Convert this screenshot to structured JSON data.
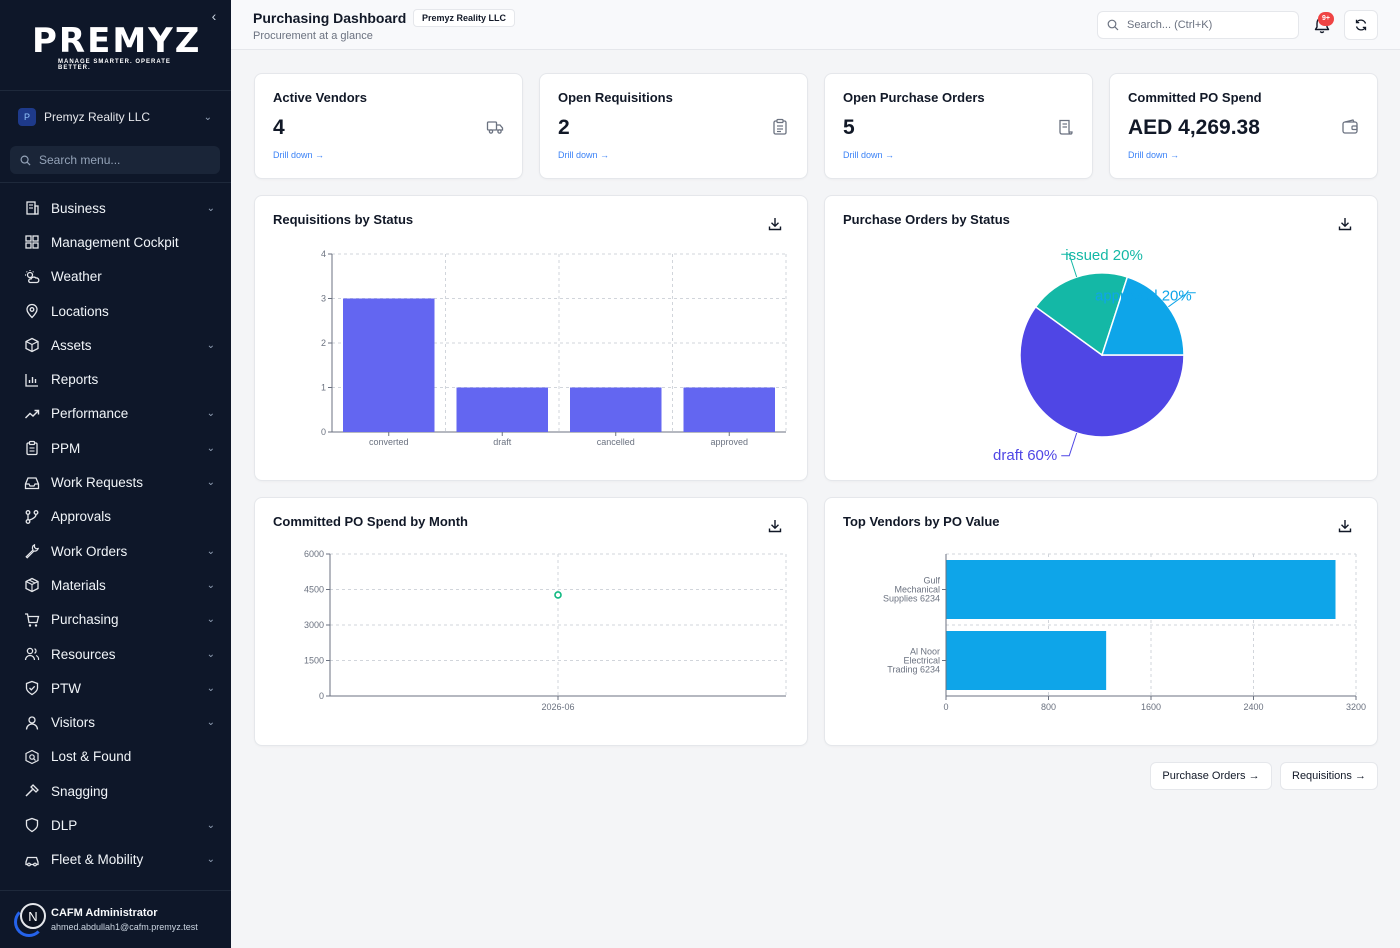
{
  "sidebar": {
    "logo_text": "PREMYZ",
    "logo_tagline": "MANAGE SMARTER. OPERATE BETTER.",
    "org_badge": "P",
    "org_name": "Premyz Reality LLC",
    "search_placeholder": "Search menu...",
    "items": [
      {
        "label": "Business",
        "icon": "building-icon",
        "expandable": true
      },
      {
        "label": "Management Cockpit",
        "icon": "dashboard-grid-icon",
        "expandable": false
      },
      {
        "label": "Weather",
        "icon": "sun-cloud-icon",
        "expandable": false
      },
      {
        "label": "Locations",
        "icon": "map-pin-icon",
        "expandable": false
      },
      {
        "label": "Assets",
        "icon": "box-icon",
        "expandable": true
      },
      {
        "label": "Reports",
        "icon": "bar-chart-icon",
        "expandable": false
      },
      {
        "label": "Performance",
        "icon": "trend-up-icon",
        "expandable": true
      },
      {
        "label": "PPM",
        "icon": "clipboard-icon",
        "expandable": true
      },
      {
        "label": "Work Requests",
        "icon": "inbox-icon",
        "expandable": true
      },
      {
        "label": "Approvals",
        "icon": "branch-icon",
        "expandable": false
      },
      {
        "label": "Work Orders",
        "icon": "wrench-icon",
        "expandable": true
      },
      {
        "label": "Materials",
        "icon": "package-icon",
        "expandable": true
      },
      {
        "label": "Purchasing",
        "icon": "cart-icon",
        "expandable": true
      },
      {
        "label": "Resources",
        "icon": "users-icon",
        "expandable": true
      },
      {
        "label": "PTW",
        "icon": "shield-check-icon",
        "expandable": true
      },
      {
        "label": "Visitors",
        "icon": "user-icon",
        "expandable": true
      },
      {
        "label": "Lost & Found",
        "icon": "search-box-icon",
        "expandable": false
      },
      {
        "label": "Snagging",
        "icon": "hammer-icon",
        "expandable": false
      },
      {
        "label": "DLP",
        "icon": "shield-icon",
        "expandable": true
      },
      {
        "label": "Fleet & Mobility",
        "icon": "car-icon",
        "expandable": true
      }
    ],
    "user": {
      "initial": "N",
      "name": "CAFM Administrator",
      "email": "ahmed.abdullah1@cafm.premyz.test"
    }
  },
  "header": {
    "title": "Purchasing Dashboard",
    "org_chip": "Premyz Reality LLC",
    "subtitle": "Procurement at a glance",
    "search_placeholder": "Search... (Ctrl+K)",
    "notification_badge": "9+"
  },
  "kpis": [
    {
      "label": "Active Vendors",
      "value": "4",
      "link": "Drill down →",
      "icon": "truck-icon"
    },
    {
      "label": "Open Requisitions",
      "value": "2",
      "link": "Drill down →",
      "icon": "clipboard-list-icon"
    },
    {
      "label": "Open Purchase Orders",
      "value": "5",
      "link": "Drill down →",
      "icon": "scroll-icon"
    },
    {
      "label": "Committed PO Spend",
      "value": "AED 4,269.38",
      "link": "Drill down →",
      "icon": "wallet-icon"
    }
  ],
  "panels": {
    "requisitions": {
      "title": "Requisitions by Status"
    },
    "purchase_orders": {
      "title": "Purchase Orders by Status"
    },
    "spend": {
      "title": "Committed PO Spend by Month"
    },
    "vendors": {
      "title": "Top Vendors by PO Value"
    }
  },
  "footer": {
    "po_button": "Purchase Orders →",
    "req_button": "Requisitions →"
  },
  "colors": {
    "indigo": "#6366f1",
    "pie_draft": "#4f46e5",
    "pie_approved": "#0ea5e9",
    "pie_issued": "#14b8a6",
    "vendor_bar": "#0ea5e9",
    "line_point": "#10b981"
  },
  "chart_data": [
    {
      "type": "bar",
      "title": "Requisitions by Status",
      "categories": [
        "converted",
        "draft",
        "cancelled",
        "approved"
      ],
      "values": [
        3,
        1,
        1,
        1
      ],
      "ylim": [
        0,
        4
      ],
      "yticks": [
        0,
        1,
        2,
        3,
        4
      ],
      "grid": true
    },
    {
      "type": "pie",
      "title": "Purchase Orders by Status",
      "labels": [
        "draft",
        "issued",
        "approved"
      ],
      "values": [
        60,
        20,
        20
      ],
      "label_text": [
        "draft 60%",
        "issued 20%",
        "approved 20%"
      ]
    },
    {
      "type": "line",
      "title": "Committed PO Spend by Month",
      "x": [
        "2026-06"
      ],
      "values": [
        4269.38
      ],
      "ylim": [
        0,
        6000
      ],
      "yticks": [
        0,
        1500,
        3000,
        4500,
        6000
      ],
      "grid": true
    },
    {
      "type": "bar",
      "orientation": "horizontal",
      "title": "Top Vendors by PO Value",
      "categories": [
        [
          "Gulf",
          "Mechanical",
          "Supplies 6234"
        ],
        [
          "Al Noor",
          "Electrical",
          "Trading 6234"
        ]
      ],
      "values": [
        3040,
        1250
      ],
      "xlim": [
        0,
        3200
      ],
      "xticks": [
        0,
        800,
        1600,
        2400,
        3200
      ],
      "grid": true
    }
  ]
}
